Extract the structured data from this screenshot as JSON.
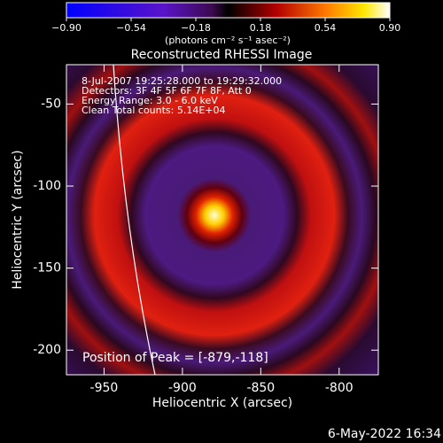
{
  "chart_data": {
    "type": "image",
    "title": "Reconstructed RHESSI Image",
    "x_label": "Heliocentric X (arcsec)",
    "y_label": "Heliocentric Y (arcsec)",
    "xlim": [
      -974,
      -775
    ],
    "xticks": [
      -950,
      -900,
      -850,
      -800
    ],
    "ylim": [
      -215,
      -26
    ],
    "yticks": [
      -200,
      -150,
      -100,
      -50
    ],
    "colorbar": {
      "label": "(photons cm⁻² s⁻¹ asec⁻²)",
      "lim": [
        -0.9,
        0.9
      ],
      "ticks": [
        {
          "value": -0.9,
          "label": "−0.90"
        },
        {
          "value": -0.54,
          "label": "−0.54"
        },
        {
          "value": -0.18,
          "label": "−0.18"
        },
        {
          "value": 0.18,
          "label": "0.18"
        },
        {
          "value": 0.54,
          "label": "0.54"
        },
        {
          "value": 0.9,
          "label": "0.90"
        }
      ]
    },
    "annotations": [
      " 8-Jul-2007 19:25:28.000 to 19:29:32.000",
      "Detectors: 3F 4F 5F 6F 7F 8F, Att 0",
      "Energy Range: 3.0 - 6.0 keV",
      "Clean     Total counts: 5.14E+04"
    ],
    "peak_note": "Position of Peak = [-879,-118]",
    "footer": "6-May-2022 16:34"
  }
}
